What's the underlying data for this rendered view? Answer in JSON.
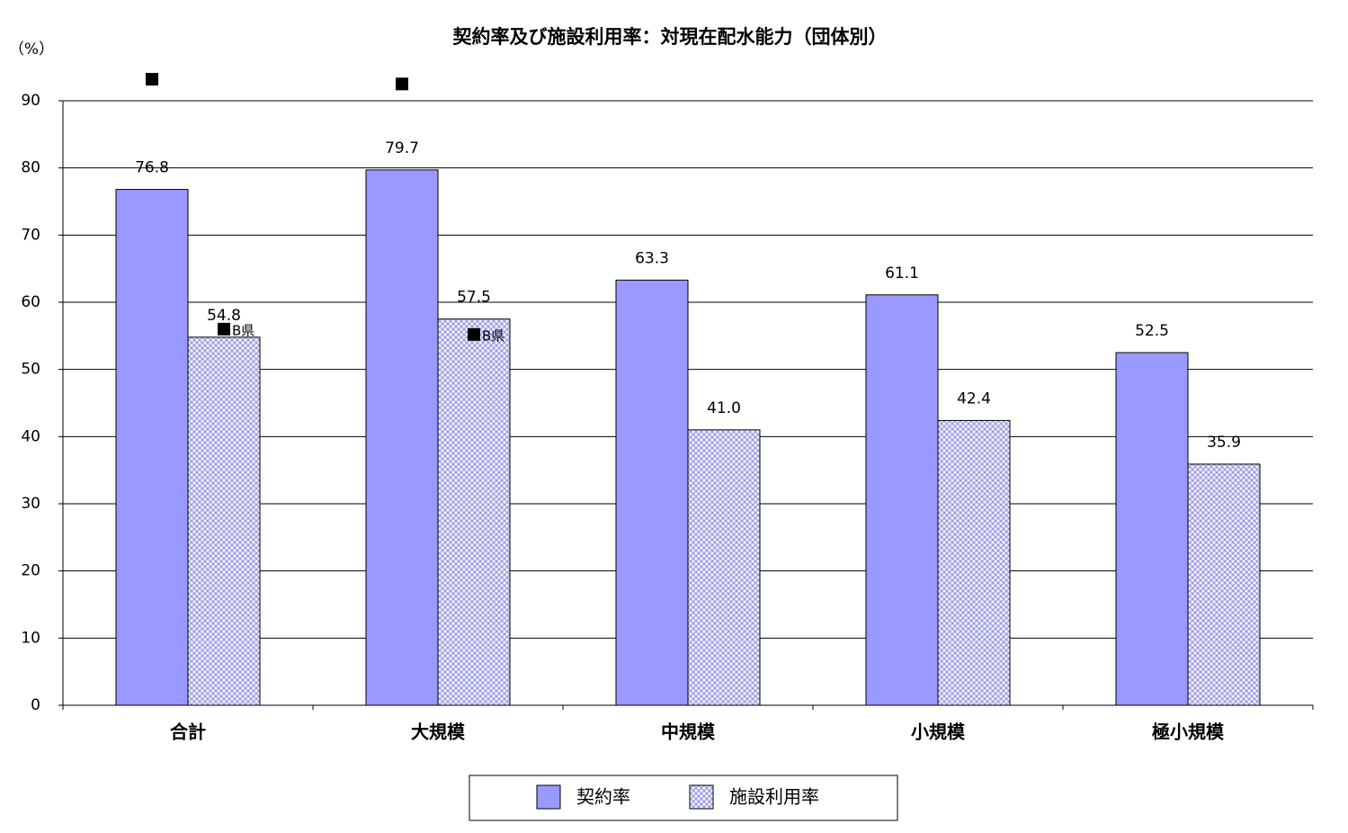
{
  "chart_data": {
    "type": "bar",
    "title": "契約率及び施設利用率：対現在配水能力（団体別）",
    "y_label": "（%）",
    "categories": [
      "合計",
      "大規模",
      "中規模",
      "小規模",
      "極小規模"
    ],
    "series": [
      {
        "name": "契約率",
        "color": "#9999ff",
        "fill": "solid",
        "values": [
          76.8,
          79.7,
          63.3,
          61.1,
          52.5
        ],
        "markers": [
          93.2,
          92.5,
          null,
          null,
          null
        ]
      },
      {
        "name": "施設利用率",
        "color": "#9999ff",
        "fill": "crosshatch",
        "values": [
          54.8,
          57.5,
          41.0,
          42.4,
          35.9
        ],
        "value_labels": [
          "54.8",
          "57.5",
          "41.0",
          "42.4",
          "35.9"
        ],
        "markers": [
          56.0,
          55.2,
          null,
          null,
          null
        ],
        "marker_labels": [
          "B県",
          "B県",
          null,
          null,
          null
        ]
      }
    ],
    "ylim": [
      0,
      90
    ],
    "yticks": [
      0,
      10,
      20,
      30,
      40,
      50,
      60,
      70,
      80,
      90
    ],
    "grid": true,
    "legend": "bottom"
  }
}
